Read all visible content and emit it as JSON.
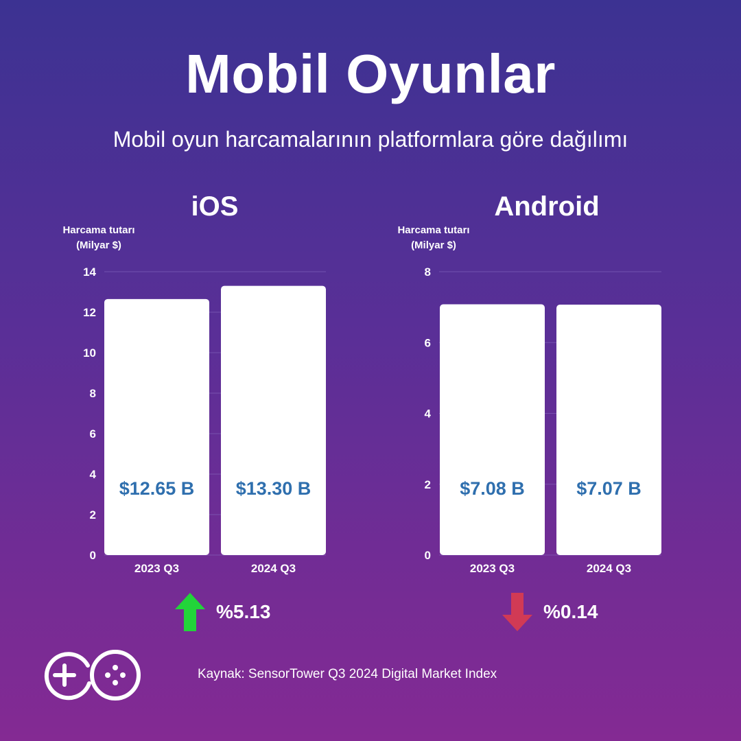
{
  "title": "Mobil Oyunlar",
  "subtitle": "Mobil oyun harcamalarının platformlara göre dağılımı",
  "chart_data": [
    {
      "type": "bar",
      "title": "iOS",
      "ylabel_lines": [
        "Harcama tutarı",
        "(Milyar $)"
      ],
      "xlabel": "",
      "categories": [
        "2023 Q3",
        "2024 Q3"
      ],
      "values": [
        12.65,
        13.3
      ],
      "value_labels": [
        "$12.65 B",
        "$13.30 B"
      ],
      "ylim": [
        0,
        14
      ],
      "yticks": [
        0,
        2,
        4,
        6,
        8,
        10,
        12,
        14
      ],
      "grid": true,
      "bar_color": "#ffffff",
      "label_color": "#2f6fae"
    },
    {
      "type": "bar",
      "title": "Android",
      "ylabel_lines": [
        "Harcama tutarı",
        "(Milyar $)"
      ],
      "xlabel": "",
      "categories": [
        "2023 Q3",
        "2024 Q3"
      ],
      "values": [
        7.08,
        7.07
      ],
      "value_labels": [
        "$7.08 B",
        "$7.07 B"
      ],
      "ylim": [
        0,
        8
      ],
      "yticks": [
        0,
        2,
        4,
        6,
        8
      ],
      "grid": true,
      "bar_color": "#ffffff",
      "label_color": "#2f6fae"
    }
  ],
  "changes": {
    "ios": {
      "direction": "up",
      "label": "%5.13",
      "icon": "arrow-up-icon",
      "color": "#22d43a"
    },
    "android": {
      "direction": "down",
      "label": "%0.14",
      "icon": "arrow-down-icon",
      "color": "#d13a55"
    }
  },
  "logo": {
    "icon": "game-controller-logo-icon"
  },
  "source": "Kaynak: SensorTower Q3 2024 Digital Market Index",
  "colors": {
    "background_top": "#3c3292",
    "background_bottom": "#842a93"
  }
}
